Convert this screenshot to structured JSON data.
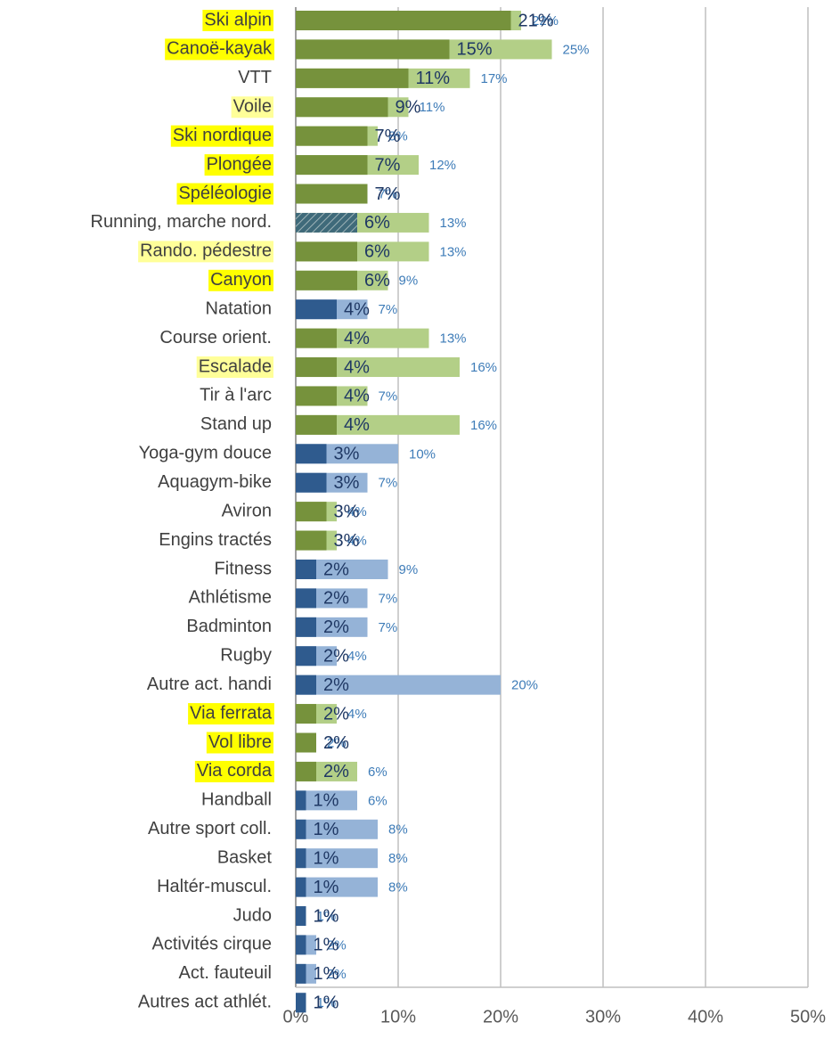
{
  "chart_data": {
    "type": "bar",
    "orientation": "horizontal",
    "categories": [
      "Ski alpin",
      "Canoë-kayak",
      "VTT",
      "Voile",
      "Ski nordique",
      "Plongée",
      "Spéléologie",
      "Running, marche nord.",
      "Rando. pédestre",
      "Canyon",
      "Natation",
      "Course orient.",
      "Escalade",
      "Tir à l'arc",
      "Stand up",
      "Yoga-gym douce",
      "Aquagym-bike",
      "Aviron",
      "Engins tractés",
      "Fitness",
      "Athlétisme",
      "Badminton",
      "Rugby",
      "Autre act. handi",
      "Via ferrata",
      "Vol libre",
      "Via corda",
      "Handball",
      "Autre sport coll.",
      "Basket",
      "Haltér-muscul.",
      "Judo",
      "Activités cirque",
      "Act. fauteuil",
      "Autres act athlét."
    ],
    "highlight": [
      "#ffff00",
      "#ffff00",
      null,
      "#ffff99",
      "#ffff00",
      "#ffff00",
      "#ffff00",
      null,
      "#ffff99",
      "#ffff00",
      null,
      null,
      "#ffff99",
      null,
      null,
      null,
      null,
      null,
      null,
      null,
      null,
      null,
      null,
      null,
      "#ffff00",
      "#ffff00",
      "#ffff00",
      null,
      null,
      null,
      null,
      null,
      null,
      null,
      null
    ],
    "series": [
      {
        "values": [
          22,
          25,
          17,
          11,
          8,
          12,
          7,
          13,
          13,
          9,
          7,
          13,
          16,
          7,
          16,
          10,
          7,
          4,
          4,
          9,
          7,
          7,
          4,
          20,
          4,
          2,
          6,
          6,
          8,
          8,
          8,
          1,
          2,
          2,
          1
        ],
        "value_labels": [
          "22%",
          "25%",
          "17%",
          "11%",
          "8%",
          "12%",
          "7%",
          "13%",
          "13%",
          "9%",
          "7%",
          "13%",
          "16%",
          "7%",
          "16%",
          "10%",
          "7%",
          "4%",
          "4%",
          "9%",
          "7%",
          "7%",
          "4%",
          "20%",
          "4%",
          "2%",
          "6%",
          "6%",
          "8%",
          "8%",
          "8%",
          "1%",
          "2%",
          "2%",
          "1%"
        ],
        "colors": [
          "#b3cf87",
          "#b3cf87",
          "#b3cf87",
          "#b3cf87",
          "#b3cf87",
          "#b3cf87",
          "#b3cf87",
          "#b3cf87",
          "#b3cf87",
          "#b3cf87",
          "#95b3d7",
          "#b3cf87",
          "#b3cf87",
          "#b3cf87",
          "#b3cf87",
          "#95b3d7",
          "#95b3d7",
          "#b3cf87",
          "#b3cf87",
          "#95b3d7",
          "#95b3d7",
          "#95b3d7",
          "#95b3d7",
          "#95b3d7",
          "#b3cf87",
          "#b3cf87",
          "#b3cf87",
          "#95b3d7",
          "#95b3d7",
          "#95b3d7",
          "#95b3d7",
          "#95b3d7",
          "#95b3d7",
          "#95b3d7",
          "#95b3d7"
        ],
        "label_color": "#3e7cb8"
      },
      {
        "values": [
          21,
          15,
          11,
          9,
          7,
          7,
          7,
          6,
          6,
          6,
          4,
          4,
          4,
          4,
          4,
          3,
          3,
          3,
          3,
          2,
          2,
          2,
          2,
          2,
          2,
          2,
          2,
          1,
          1,
          1,
          1,
          1,
          1,
          1,
          1
        ],
        "value_labels": [
          "21%",
          "15%",
          "11%",
          "9%",
          "7%",
          "7%",
          "7%",
          "6%",
          "6%",
          "6%",
          "4%",
          "4%",
          "4%",
          "4%",
          "4%",
          "3%",
          "3%",
          "3%",
          "3%",
          "2%",
          "2%",
          "2%",
          "2%",
          "2%",
          "2%",
          "2%",
          "2%",
          "1%",
          "1%",
          "1%",
          "1%",
          "1%",
          "1%",
          "1%",
          "1%"
        ],
        "colors": [
          "#76923c",
          "#76923c",
          "#76923c",
          "#76923c",
          "#76923c",
          "#76923c",
          "#76923c",
          "#3f6a7a",
          "#76923c",
          "#76923c",
          "#2f5b8e",
          "#76923c",
          "#76923c",
          "#76923c",
          "#76923c",
          "#2f5b8e",
          "#2f5b8e",
          "#76923c",
          "#76923c",
          "#2f5b8e",
          "#2f5b8e",
          "#2f5b8e",
          "#2f5b8e",
          "#2f5b8e",
          "#76923c",
          "#76923c",
          "#76923c",
          "#2f5b8e",
          "#2f5b8e",
          "#2f5b8e",
          "#2f5b8e",
          "#2f5b8e",
          "#2f5b8e",
          "#2f5b8e",
          "#2f5b8e"
        ],
        "hatched": [
          false,
          false,
          false,
          false,
          false,
          false,
          false,
          true,
          false,
          false,
          false,
          false,
          false,
          false,
          false,
          false,
          false,
          false,
          false,
          false,
          false,
          false,
          false,
          false,
          false,
          false,
          false,
          false,
          false,
          false,
          false,
          false,
          false,
          false,
          false
        ],
        "label_color": "#1f3864"
      }
    ],
    "xlim": [
      0,
      50
    ],
    "xticks": [
      {
        "value": 0,
        "label": "0%"
      },
      {
        "value": 10,
        "label": "10%"
      },
      {
        "value": 20,
        "label": "20%"
      },
      {
        "value": 30,
        "label": "30%"
      },
      {
        "value": 40,
        "label": "40%"
      },
      {
        "value": 50,
        "label": "50%"
      }
    ],
    "grid": true
  }
}
